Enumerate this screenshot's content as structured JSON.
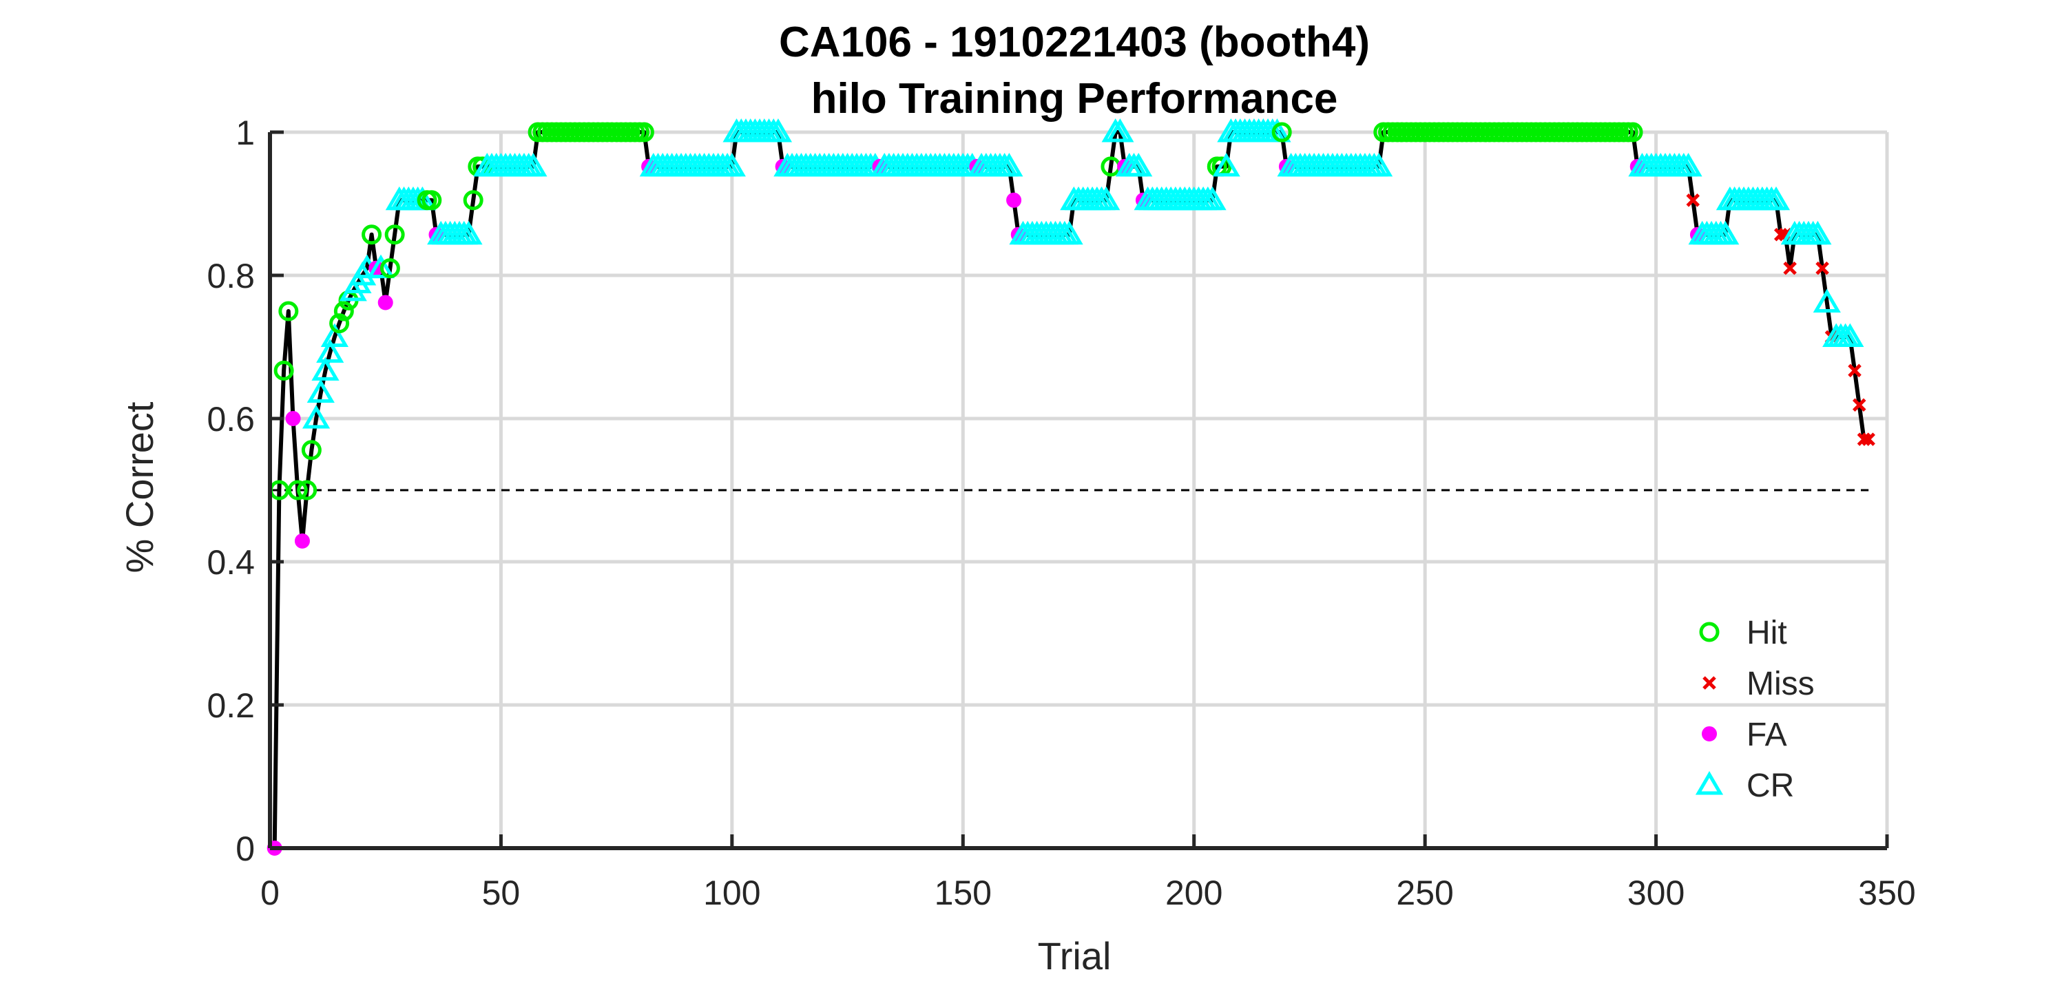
{
  "chart_data": {
    "type": "line",
    "title": "CA106 - 1910221403 (booth4)",
    "subtitle": "hilo Training Performance",
    "xlabel": "Trial",
    "ylabel": "% Correct",
    "xlim": [
      0,
      350
    ],
    "ylim": [
      0,
      1
    ],
    "xticks": [
      "0",
      "50",
      "100",
      "150",
      "200",
      "250",
      "300",
      "350"
    ],
    "yticks": [
      "0",
      "0.2",
      "0.4",
      "0.6",
      "0.8",
      "1"
    ],
    "grid": true,
    "legend_position": "bottom-right",
    "chance_line": 0.5,
    "colors": {
      "line": "#000000",
      "hit": "#00ee00",
      "miss": "#ee0000",
      "fa": "#ff00ff",
      "cr": "#00ffff",
      "grid": "#d9d9d9",
      "axis": "#262626"
    },
    "legend": [
      {
        "key": "hit",
        "label": "Hit"
      },
      {
        "key": "miss",
        "label": "Miss"
      },
      {
        "key": "fa",
        "label": "FA"
      },
      {
        "key": "cr",
        "label": "CR"
      }
    ],
    "runs": [
      [
        1,
        1,
        "fa"
      ],
      [
        2,
        2,
        "hit"
      ],
      [
        3,
        3,
        "hit"
      ],
      [
        4,
        4,
        "hit"
      ],
      [
        5,
        5,
        "fa"
      ],
      [
        6,
        6,
        "hit"
      ],
      [
        7,
        7,
        "fa"
      ],
      [
        8,
        9,
        "hit"
      ],
      [
        10,
        14,
        "cr"
      ],
      [
        15,
        17,
        "hit"
      ],
      [
        18,
        21,
        "cr"
      ],
      [
        22,
        22,
        "hit"
      ],
      [
        23,
        23,
        "fa"
      ],
      [
        24,
        24,
        "cr"
      ],
      [
        25,
        25,
        "fa"
      ],
      [
        26,
        27,
        "hit"
      ],
      [
        28,
        33,
        "cr"
      ],
      [
        34,
        35,
        "hit"
      ],
      [
        36,
        36,
        "fa"
      ],
      [
        37,
        43,
        "cr"
      ],
      [
        44,
        46,
        "hit"
      ],
      [
        47,
        57,
        "cr"
      ],
      [
        58,
        81,
        "hit"
      ],
      [
        82,
        82,
        "fa"
      ],
      [
        83,
        100,
        "cr"
      ],
      [
        101,
        110,
        "cr"
      ],
      [
        111,
        111,
        "fa"
      ],
      [
        112,
        131,
        "cr"
      ],
      [
        132,
        132,
        "fa"
      ],
      [
        133,
        152,
        "cr"
      ],
      [
        153,
        153,
        "fa"
      ],
      [
        154,
        160,
        "cr"
      ],
      [
        161,
        162,
        "fa"
      ],
      [
        163,
        173,
        "cr"
      ],
      [
        174,
        181,
        "cr"
      ],
      [
        182,
        182,
        "hit"
      ],
      [
        183,
        184,
        "cr"
      ],
      [
        185,
        185,
        "fa"
      ],
      [
        186,
        188,
        "cr"
      ],
      [
        189,
        189,
        "fa"
      ],
      [
        190,
        204,
        "cr"
      ],
      [
        205,
        206,
        "hit"
      ],
      [
        207,
        218,
        "cr"
      ],
      [
        219,
        219,
        "hit"
      ],
      [
        220,
        220,
        "fa"
      ],
      [
        221,
        240,
        "cr"
      ],
      [
        241,
        295,
        "hit"
      ],
      [
        296,
        296,
        "fa"
      ],
      [
        297,
        307,
        "cr"
      ],
      [
        308,
        308,
        "miss"
      ],
      [
        309,
        309,
        "fa"
      ],
      [
        310,
        315,
        "cr"
      ],
      [
        316,
        326,
        "cr"
      ],
      [
        327,
        329,
        "miss"
      ],
      [
        330,
        335,
        "cr"
      ],
      [
        336,
        336,
        "miss"
      ],
      [
        337,
        337,
        "cr"
      ],
      [
        338,
        338,
        "miss"
      ],
      [
        339,
        342,
        "cr"
      ],
      [
        343,
        346,
        "miss"
      ]
    ],
    "knots": [
      [
        1,
        0
      ],
      [
        2,
        0.5
      ],
      [
        3,
        0.667
      ],
      [
        4,
        0.75
      ],
      [
        5,
        0.6
      ],
      [
        6,
        0.5
      ],
      [
        7,
        0.429
      ],
      [
        8,
        0.5
      ],
      [
        9,
        0.556
      ],
      [
        10,
        0.6
      ],
      [
        11,
        0.636
      ],
      [
        12,
        0.667
      ],
      [
        13,
        0.692
      ],
      [
        14,
        0.714
      ],
      [
        15,
        0.733
      ],
      [
        16,
        0.75
      ],
      [
        17,
        0.765
      ],
      [
        18,
        0.778
      ],
      [
        19,
        0.789
      ],
      [
        20,
        0.8
      ],
      [
        21,
        0.81
      ],
      [
        22,
        0.857
      ],
      [
        23,
        0.81
      ],
      [
        24,
        0.81
      ],
      [
        25,
        0.762
      ],
      [
        26,
        0.81
      ],
      [
        27,
        0.857
      ],
      [
        28,
        0.905
      ],
      [
        33,
        0.905
      ],
      [
        34,
        0.905
      ],
      [
        35,
        0.905
      ],
      [
        36,
        0.857
      ],
      [
        43,
        0.857
      ],
      [
        44,
        0.905
      ],
      [
        45,
        0.952
      ],
      [
        57,
        0.952
      ],
      [
        58,
        1.0
      ],
      [
        81,
        1.0
      ],
      [
        82,
        0.952
      ],
      [
        100,
        0.952
      ],
      [
        101,
        1.0
      ],
      [
        110,
        1.0
      ],
      [
        111,
        0.952
      ],
      [
        160,
        0.952
      ],
      [
        161,
        0.905
      ],
      [
        162,
        0.857
      ],
      [
        173,
        0.857
      ],
      [
        174,
        0.905
      ],
      [
        181,
        0.905
      ],
      [
        182,
        0.952
      ],
      [
        183,
        1.0
      ],
      [
        184,
        1.0
      ],
      [
        185,
        0.952
      ],
      [
        186,
        0.952
      ],
      [
        188,
        0.952
      ],
      [
        189,
        0.905
      ],
      [
        204,
        0.905
      ],
      [
        205,
        0.952
      ],
      [
        206,
        0.952
      ],
      [
        207,
        0.952
      ],
      [
        208,
        1.0
      ],
      [
        218,
        1.0
      ],
      [
        219,
        1.0
      ],
      [
        220,
        0.952
      ],
      [
        240,
        0.952
      ],
      [
        241,
        1.0
      ],
      [
        295,
        1.0
      ],
      [
        296,
        0.952
      ],
      [
        307,
        0.952
      ],
      [
        308,
        0.905
      ],
      [
        309,
        0.857
      ],
      [
        315,
        0.857
      ],
      [
        316,
        0.905
      ],
      [
        326,
        0.905
      ],
      [
        327,
        0.857
      ],
      [
        328,
        0.857
      ],
      [
        329,
        0.81
      ],
      [
        330,
        0.857
      ],
      [
        335,
        0.857
      ],
      [
        336,
        0.81
      ],
      [
        337,
        0.762
      ],
      [
        338,
        0.714
      ],
      [
        339,
        0.714
      ],
      [
        342,
        0.714
      ],
      [
        343,
        0.667
      ],
      [
        344,
        0.619
      ],
      [
        345,
        0.571
      ],
      [
        346,
        0.571
      ]
    ]
  }
}
